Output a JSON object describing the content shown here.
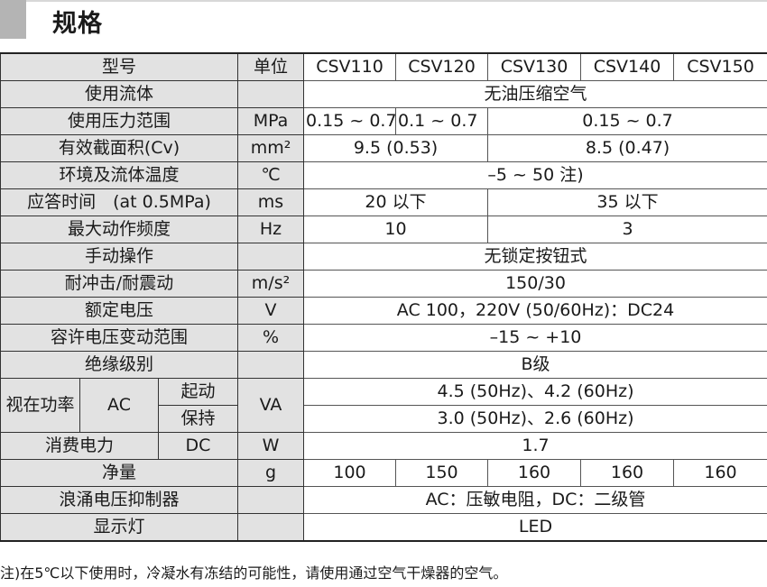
{
  "title": "规格",
  "header": {
    "label": "型号",
    "unit": "单位",
    "models": [
      "CSV110",
      "CSV120",
      "CSV130",
      "CSV140",
      "CSV150"
    ]
  },
  "rows": {
    "fluid": {
      "label": "使用流体",
      "unit": "",
      "value": "无油压缩空气"
    },
    "pressure": {
      "label": "使用压力范围",
      "unit": "MPa",
      "values": [
        "0.15 ~ 0.7",
        "0.1 ~ 0.7",
        "0.15 ~ 0.7"
      ]
    },
    "cv": {
      "label": "有效截面积(Cv)",
      "unit": "mm²",
      "values": [
        "9.5 (0.53)",
        "8.5 (0.47)"
      ]
    },
    "temp": {
      "label": "环境及流体温度",
      "unit": "℃",
      "value": "–5 ~ 50 注)"
    },
    "response": {
      "label": "应答时间　(at 0.5MPa)",
      "unit": "ms",
      "values": [
        "20 以下",
        "35 以下"
      ]
    },
    "freq": {
      "label": "最大动作频度",
      "unit": "Hz",
      "values": [
        "10",
        "3"
      ]
    },
    "manual": {
      "label": "手动操作",
      "unit": "",
      "value": "无锁定按钮式"
    },
    "shock": {
      "label": "耐冲击/耐震动",
      "unit": "m/s²",
      "value": "150/30"
    },
    "voltage": {
      "label": "额定电压",
      "unit": "V",
      "value": "AC 100，220V (50/60Hz)：DC24"
    },
    "range": {
      "label": "容许电压变动范围",
      "unit": "%",
      "value": "–15 ~ +10"
    },
    "insulation": {
      "label": "绝缘级别",
      "unit": "",
      "value": "B级"
    },
    "apparent": {
      "label": "视在功率",
      "sub": "AC",
      "start": "起动",
      "hold": "保持",
      "unit": "VA",
      "start_value": "4.5 (50Hz)、4.2 (60Hz)",
      "hold_value": "3.0 (50Hz)、2.6 (60Hz)"
    },
    "power": {
      "label": "消费电力",
      "sub": "DC",
      "unit": "W",
      "value": "1.7"
    },
    "weight": {
      "label": "净量",
      "unit": "g",
      "values": [
        "100",
        "150",
        "160",
        "160",
        "160"
      ]
    },
    "surge": {
      "label": "浪涌电压抑制器",
      "unit": "",
      "value": "AC：压敏电阻，DC：二级管"
    },
    "led": {
      "label": "显示灯",
      "unit": "",
      "value": "LED"
    }
  },
  "note": "注)在5℃以下使用时，冷凝水有冻结的可能性，请使用通过空气干燥器的空气。"
}
